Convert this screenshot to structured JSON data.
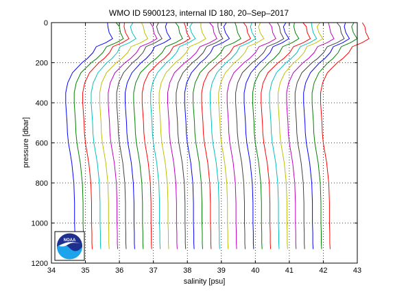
{
  "chart_data": {
    "type": "line",
    "title": "WMO ID 5900123, internal ID 180, 20–Sep–2017",
    "xlabel": "salinity [psu]",
    "ylabel": "pressure [dbar]",
    "xlim": [
      34,
      43
    ],
    "ylim": [
      0,
      1200
    ],
    "y_reversed": true,
    "grid": true,
    "grid_style": "dotted",
    "xticks": [
      "34",
      "35",
      "36",
      "37",
      "38",
      "39",
      "40",
      "41",
      "42",
      "43"
    ],
    "yticks": [
      "0",
      "200",
      "400",
      "600",
      "800",
      "1000",
      "1200"
    ],
    "legend": "none",
    "profile_count": 31,
    "profile_offset_psu": 0.25,
    "colors": [
      "#0000ff",
      "#008000",
      "#ff0000",
      "#00bfbf",
      "#bfbf00",
      "#bf00bf",
      "#404040"
    ],
    "base_profile": {
      "pressure": [
        0,
        20,
        50,
        80,
        100,
        120,
        150,
        180,
        200,
        250,
        300,
        350,
        400,
        450,
        500,
        550,
        600,
        650,
        700,
        800,
        900,
        1000,
        1050,
        1100,
        1130
      ],
      "salinity": [
        35.65,
        35.66,
        35.7,
        35.8,
        35.6,
        35.32,
        35.22,
        35.05,
        34.9,
        34.62,
        34.48,
        34.42,
        34.42,
        34.44,
        34.46,
        34.47,
        34.5,
        34.55,
        34.6,
        34.66,
        34.68,
        34.68,
        34.69,
        34.69,
        34.7
      ]
    }
  },
  "logo": {
    "text": "NOAA",
    "colors": {
      "dark": "#1f2f8f",
      "light": "#1ca3ec",
      "white": "#ffffff"
    }
  }
}
